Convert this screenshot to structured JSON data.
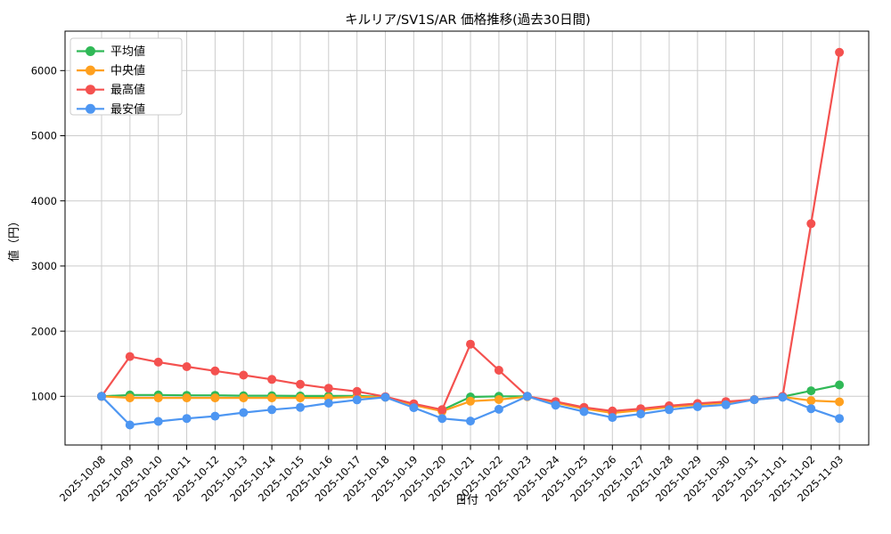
{
  "chart_data": {
    "type": "line",
    "title": "キルリア/SV1S/AR 価格推移(過去30日間)",
    "xlabel": "日付",
    "ylabel": "値（円）",
    "legend_position": "upper-left",
    "grid": true,
    "ylim": [
      250,
      6600
    ],
    "yticks": [
      1000,
      2000,
      3000,
      4000,
      5000,
      6000
    ],
    "categories": [
      "2025-10-08",
      "2025-10-09",
      "2025-10-10",
      "2025-10-11",
      "2025-10-12",
      "2025-10-13",
      "2025-10-14",
      "2025-10-15",
      "2025-10-16",
      "2025-10-17",
      "2025-10-18",
      "2025-10-19",
      "2025-10-20",
      "2025-10-21",
      "2025-10-22",
      "2025-10-23",
      "2025-10-24",
      "2025-10-25",
      "2025-10-26",
      "2025-10-27",
      "2025-10-28",
      "2025-10-29",
      "2025-10-30",
      "2025-10-31",
      "2025-11-01",
      "2025-11-02",
      "2025-11-03"
    ],
    "series": [
      {
        "name": "平均値",
        "color": "#30b957",
        "values": [
          1000,
          1020,
          1020,
          1015,
          1015,
          1010,
          1010,
          1005,
          1005,
          1005,
          990,
          875,
          790,
          990,
          1000,
          1000,
          910,
          820,
          750,
          795,
          845,
          880,
          910,
          950,
          995,
          1085,
          1175
        ]
      },
      {
        "name": "中央値",
        "color": "#ffa01e",
        "values": [
          1000,
          975,
          975,
          975,
          975,
          975,
          975,
          975,
          975,
          990,
          985,
          865,
          770,
          925,
          950,
          995,
          900,
          810,
          745,
          785,
          835,
          870,
          900,
          948,
          990,
          935,
          915
        ]
      },
      {
        "name": "最高値",
        "color": "#f4514f",
        "values": [
          1000,
          1610,
          1525,
          1455,
          1390,
          1325,
          1260,
          1185,
          1125,
          1075,
          995,
          885,
          795,
          1800,
          1400,
          1000,
          920,
          830,
          775,
          810,
          855,
          890,
          920,
          950,
          1000,
          3650,
          6280
        ]
      },
      {
        "name": "最安値",
        "color": "#4d96f2",
        "values": [
          1000,
          560,
          615,
          660,
          695,
          750,
          795,
          830,
          895,
          945,
          985,
          825,
          660,
          620,
          800,
          1000,
          865,
          765,
          675,
          730,
          795,
          840,
          870,
          948,
          985,
          810,
          660
        ]
      }
    ],
    "colors": {
      "grid": "#cccccc",
      "spine": "#000000",
      "background": "#ffffff",
      "legend_border": "#cccccc",
      "legend_background": "#ffffff"
    }
  }
}
